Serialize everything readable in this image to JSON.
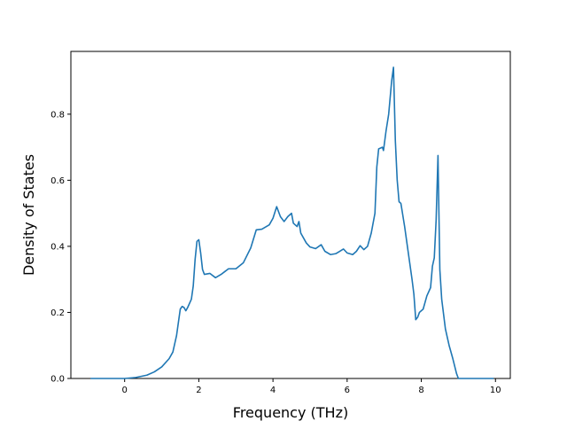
{
  "chart_data": {
    "type": "line",
    "title": "",
    "xlabel": "Frequency (THz)",
    "ylabel": "Density of States",
    "xlim": [
      -1.45,
      10.4
    ],
    "ylim": [
      0,
      0.99
    ],
    "xticks": [
      0,
      2,
      4,
      6,
      8,
      10
    ],
    "yticks": [
      0.0,
      0.2,
      0.4,
      0.6,
      0.8
    ],
    "xtick_labels": [
      "0",
      "2",
      "4",
      "6",
      "8",
      "10"
    ],
    "ytick_labels": [
      "0.0",
      "0.2",
      "0.4",
      "0.6",
      "0.8"
    ],
    "grid": false,
    "legend": "none",
    "colors": {
      "line": "#1f77b4",
      "axes": "#000000",
      "background": "#ffffff"
    },
    "series": [
      {
        "points": [
          [
            -0.92,
            0.0
          ],
          [
            0.0,
            0.0
          ],
          [
            0.3,
            0.003
          ],
          [
            0.6,
            0.01
          ],
          [
            0.8,
            0.02
          ],
          [
            1.0,
            0.035
          ],
          [
            1.2,
            0.06
          ],
          [
            1.3,
            0.08
          ],
          [
            1.4,
            0.13
          ],
          [
            1.45,
            0.17
          ],
          [
            1.5,
            0.21
          ],
          [
            1.55,
            0.218
          ],
          [
            1.6,
            0.215
          ],
          [
            1.65,
            0.205
          ],
          [
            1.7,
            0.215
          ],
          [
            1.8,
            0.24
          ],
          [
            1.85,
            0.28
          ],
          [
            1.9,
            0.36
          ],
          [
            1.95,
            0.415
          ],
          [
            2.0,
            0.42
          ],
          [
            2.05,
            0.38
          ],
          [
            2.1,
            0.33
          ],
          [
            2.15,
            0.315
          ],
          [
            2.3,
            0.318
          ],
          [
            2.45,
            0.305
          ],
          [
            2.6,
            0.315
          ],
          [
            2.8,
            0.332
          ],
          [
            3.0,
            0.332
          ],
          [
            3.2,
            0.35
          ],
          [
            3.4,
            0.395
          ],
          [
            3.55,
            0.45
          ],
          [
            3.7,
            0.452
          ],
          [
            3.9,
            0.465
          ],
          [
            4.0,
            0.485
          ],
          [
            4.1,
            0.52
          ],
          [
            4.2,
            0.49
          ],
          [
            4.3,
            0.475
          ],
          [
            4.4,
            0.49
          ],
          [
            4.5,
            0.5
          ],
          [
            4.55,
            0.47
          ],
          [
            4.65,
            0.46
          ],
          [
            4.7,
            0.475
          ],
          [
            4.75,
            0.44
          ],
          [
            4.9,
            0.41
          ],
          [
            5.0,
            0.398
          ],
          [
            5.15,
            0.393
          ],
          [
            5.3,
            0.405
          ],
          [
            5.4,
            0.385
          ],
          [
            5.55,
            0.375
          ],
          [
            5.7,
            0.378
          ],
          [
            5.9,
            0.392
          ],
          [
            6.0,
            0.38
          ],
          [
            6.15,
            0.375
          ],
          [
            6.25,
            0.385
          ],
          [
            6.35,
            0.402
          ],
          [
            6.45,
            0.39
          ],
          [
            6.55,
            0.4
          ],
          [
            6.65,
            0.44
          ],
          [
            6.75,
            0.5
          ],
          [
            6.8,
            0.64
          ],
          [
            6.85,
            0.695
          ],
          [
            6.95,
            0.7
          ],
          [
            6.98,
            0.69
          ],
          [
            7.05,
            0.75
          ],
          [
            7.12,
            0.8
          ],
          [
            7.2,
            0.9
          ],
          [
            7.25,
            0.942
          ],
          [
            7.3,
            0.72
          ],
          [
            7.35,
            0.6
          ],
          [
            7.4,
            0.535
          ],
          [
            7.45,
            0.53
          ],
          [
            7.55,
            0.46
          ],
          [
            7.65,
            0.38
          ],
          [
            7.75,
            0.3
          ],
          [
            7.8,
            0.255
          ],
          [
            7.85,
            0.178
          ],
          [
            7.9,
            0.185
          ],
          [
            7.95,
            0.2
          ],
          [
            8.05,
            0.21
          ],
          [
            8.15,
            0.25
          ],
          [
            8.25,
            0.275
          ],
          [
            8.3,
            0.34
          ],
          [
            8.35,
            0.365
          ],
          [
            8.4,
            0.48
          ],
          [
            8.45,
            0.675
          ],
          [
            8.5,
            0.33
          ],
          [
            8.55,
            0.24
          ],
          [
            8.65,
            0.15
          ],
          [
            8.75,
            0.1
          ],
          [
            8.85,
            0.06
          ],
          [
            8.95,
            0.015
          ],
          [
            9.0,
            0.0
          ],
          [
            9.4,
            0.0
          ],
          [
            9.95,
            0.0
          ]
        ]
      }
    ]
  }
}
